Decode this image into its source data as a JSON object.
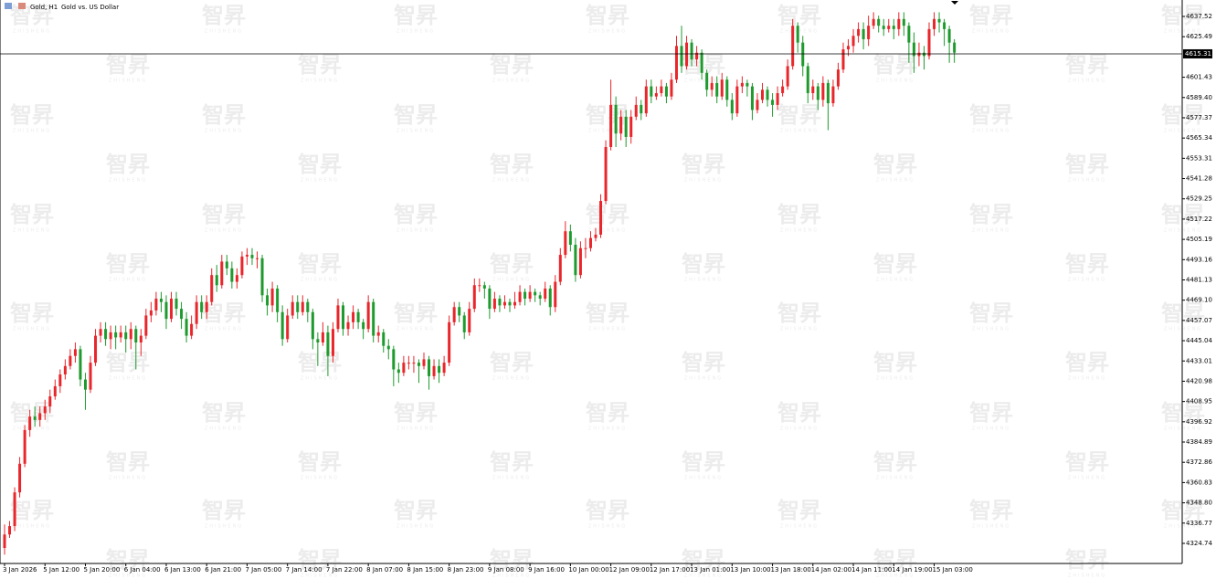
{
  "chart_data": {
    "type": "candlestick",
    "title": "Gold, H1",
    "subtitle": "Gold vs. US Dollar",
    "watermark": {
      "logo": "智昇",
      "text": "ZHISHENG"
    },
    "up_color": "#e8262b",
    "down_color": "#1f9a2e",
    "current_price": 4615.31,
    "ylim": [
      4312.8,
      4647.28
    ],
    "yticks": [
      4324.74,
      4336.77,
      {
        "value": 4348.8,
        "label": "4348.80"
      },
      4360.83,
      4372.86,
      4384.89,
      4396.92,
      4408.95,
      4420.98,
      4433.01,
      4445.04,
      4457.07,
      {
        "value": 4469.1,
        "label": "4469.10"
      },
      4481.13,
      4493.16,
      4505.19,
      4517.22,
      4529.25,
      4541.28,
      4553.31,
      4565.34,
      4577.37,
      {
        "value": 4589.4,
        "label": "4589.40"
      },
      4601.43,
      4625.49,
      4637.52
    ],
    "categories": [
      "3 Jan 2026",
      null,
      null,
      null,
      null,
      null,
      null,
      null,
      "5 Jan 12:00",
      null,
      null,
      null,
      null,
      null,
      null,
      null,
      "5 Jan 20:00",
      null,
      null,
      null,
      null,
      null,
      null,
      null,
      "6 Jan 04:00",
      null,
      null,
      null,
      null,
      null,
      null,
      null,
      "6 Jan 13:00",
      null,
      null,
      null,
      null,
      null,
      null,
      null,
      "6 Jan 21:00",
      null,
      null,
      null,
      null,
      null,
      null,
      null,
      "7 Jan 05:00",
      null,
      null,
      null,
      null,
      null,
      null,
      null,
      "7 Jan 14:00",
      null,
      null,
      null,
      null,
      null,
      null,
      null,
      "7 Jan 22:00",
      null,
      null,
      null,
      null,
      null,
      null,
      null,
      "8 Jan 07:00",
      null,
      null,
      null,
      null,
      null,
      null,
      null,
      "8 Jan 15:00",
      null,
      null,
      null,
      null,
      null,
      null,
      null,
      "8 Jan 23:00",
      null,
      null,
      null,
      null,
      null,
      null,
      null,
      "9 Jan 08:00",
      null,
      null,
      null,
      null,
      null,
      null,
      null,
      "9 Jan 16:00",
      null,
      null,
      null,
      null,
      null,
      null,
      null,
      "10 Jan 00:00",
      null,
      null,
      null,
      null,
      null,
      null,
      null,
      "12 Jan 09:00",
      null,
      null,
      null,
      null,
      null,
      null,
      null,
      "12 Jan 17:00",
      null,
      null,
      null,
      null,
      null,
      null,
      null,
      "13 Jan 01:00",
      null,
      null,
      null,
      null,
      null,
      null,
      null,
      "13 Jan 10:00",
      null,
      null,
      null,
      null,
      null,
      null,
      null,
      "13 Jan 18:00",
      null,
      null,
      null,
      null,
      null,
      null,
      null,
      "14 Jan 02:00",
      null,
      null,
      null,
      null,
      null,
      null,
      null,
      "14 Jan 11:00",
      null,
      null,
      null,
      null,
      null,
      null,
      null,
      "14 Jan 19:00",
      null,
      null,
      null,
      null,
      null,
      null,
      null,
      "15 Jan 03:00",
      null,
      null,
      null,
      null
    ],
    "ohlc": [
      [
        4322,
        4336,
        4318,
        4330
      ],
      [
        4330,
        4338,
        4328,
        4335
      ],
      [
        4335,
        4358,
        4332,
        4355
      ],
      [
        4355,
        4376,
        4352,
        4372
      ],
      [
        4372,
        4395,
        4370,
        4392
      ],
      [
        4392,
        4404,
        4388,
        4400
      ],
      [
        4400,
        4406,
        4394,
        4398
      ],
      [
        4398,
        4406,
        4394,
        4402
      ],
      [
        4402,
        4410,
        4398,
        4406
      ],
      [
        4406,
        4416,
        4402,
        4412
      ],
      [
        4412,
        4422,
        4410,
        4418
      ],
      [
        4418,
        4428,
        4414,
        4425
      ],
      [
        4425,
        4434,
        4422,
        4430
      ],
      [
        4430,
        4440,
        4428,
        4436
      ],
      [
        4436,
        4444,
        4432,
        4440
      ],
      [
        4440,
        4442,
        4418,
        4422
      ],
      [
        4422,
        4426,
        4404,
        4416
      ],
      [
        4416,
        4436,
        4414,
        4432
      ],
      [
        4432,
        4452,
        4430,
        4448
      ],
      [
        4448,
        4456,
        4444,
        4452
      ],
      [
        4452,
        4456,
        4442,
        4446
      ],
      [
        4446,
        4454,
        4440,
        4450
      ],
      [
        4450,
        4454,
        4440,
        4447
      ],
      [
        4447,
        4454,
        4444,
        4450
      ],
      [
        4450,
        4454,
        4438,
        4446
      ],
      [
        4446,
        4456,
        4440,
        4452
      ],
      [
        4452,
        4454,
        4428,
        4444
      ],
      [
        4444,
        4452,
        4436,
        4448
      ],
      [
        4448,
        4464,
        4446,
        4460
      ],
      [
        4460,
        4468,
        4456,
        4463
      ],
      [
        4463,
        4474,
        4460,
        4470
      ],
      [
        4470,
        4474,
        4462,
        4468
      ],
      [
        4468,
        4472,
        4452,
        4458
      ],
      [
        4458,
        4474,
        4456,
        4470
      ],
      [
        4470,
        4474,
        4460,
        4464
      ],
      [
        4464,
        4468,
        4452,
        4458
      ],
      [
        4458,
        4462,
        4444,
        4448
      ],
      [
        4448,
        4460,
        4446,
        4455
      ],
      [
        4455,
        4472,
        4452,
        4468
      ],
      [
        4468,
        4472,
        4458,
        4462
      ],
      [
        4462,
        4472,
        4458,
        4468
      ],
      [
        4468,
        4488,
        4466,
        4484
      ],
      [
        4484,
        4490,
        4474,
        4478
      ],
      [
        4478,
        4496,
        4476,
        4492
      ],
      [
        4492,
        4496,
        4484,
        4488
      ],
      [
        4488,
        4492,
        4476,
        4480
      ],
      [
        4480,
        4488,
        4476,
        4484
      ],
      [
        4484,
        4498,
        4482,
        4495
      ],
      [
        4495,
        4500,
        4490,
        4496
      ],
      [
        4496,
        4500,
        4490,
        4494
      ],
      [
        4494,
        4498,
        4488,
        4494
      ],
      [
        4494,
        4496,
        4468,
        4472
      ],
      [
        4472,
        4476,
        4460,
        4466
      ],
      [
        4466,
        4480,
        4462,
        4476
      ],
      [
        4476,
        4478,
        4456,
        4462
      ],
      [
        4462,
        4466,
        4442,
        4446
      ],
      [
        4446,
        4464,
        4444,
        4460
      ],
      [
        4460,
        4472,
        4458,
        4468
      ],
      [
        4468,
        4472,
        4458,
        4462
      ],
      [
        4462,
        4472,
        4460,
        4468
      ],
      [
        4468,
        4470,
        4456,
        4462
      ],
      [
        4462,
        4464,
        4440,
        4446
      ],
      [
        4446,
        4450,
        4430,
        4444
      ],
      [
        4444,
        4456,
        4442,
        4450
      ],
      [
        4450,
        4454,
        4424,
        4436
      ],
      [
        4436,
        4456,
        4432,
        4452
      ],
      [
        4452,
        4470,
        4450,
        4466
      ],
      [
        4466,
        4468,
        4448,
        4452
      ],
      [
        4452,
        4460,
        4448,
        4456
      ],
      [
        4456,
        4466,
        4452,
        4462
      ],
      [
        4462,
        4464,
        4452,
        4456
      ],
      [
        4456,
        4458,
        4446,
        4452
      ],
      [
        4452,
        4472,
        4450,
        4468
      ],
      [
        4468,
        4470,
        4444,
        4448
      ],
      [
        4448,
        4454,
        4444,
        4450
      ],
      [
        4450,
        4452,
        4438,
        4442
      ],
      [
        4442,
        4446,
        4434,
        4440
      ],
      [
        4440,
        4442,
        4418,
        4428
      ],
      [
        4428,
        4432,
        4420,
        4426
      ],
      [
        4426,
        4436,
        4424,
        4432
      ],
      [
        4432,
        4436,
        4428,
        4432
      ],
      [
        4432,
        4436,
        4426,
        4432
      ],
      [
        4432,
        4434,
        4420,
        4430
      ],
      [
        4430,
        4438,
        4428,
        4434
      ],
      [
        4434,
        4436,
        4416,
        4424
      ],
      [
        4424,
        4434,
        4422,
        4430
      ],
      [
        4430,
        4434,
        4420,
        4426
      ],
      [
        4426,
        4436,
        4424,
        4432
      ],
      [
        4432,
        4460,
        4430,
        4456
      ],
      [
        4456,
        4468,
        4454,
        4465
      ],
      [
        4465,
        4468,
        4456,
        4460
      ],
      [
        4460,
        4462,
        4446,
        4450
      ],
      [
        4450,
        4468,
        4448,
        4464
      ],
      [
        4464,
        4482,
        4462,
        4478
      ],
      [
        4478,
        4482,
        4474,
        4478
      ],
      [
        4478,
        4480,
        4470,
        4476
      ],
      [
        4476,
        4478,
        4458,
        4464
      ],
      [
        4464,
        4474,
        4462,
        4470
      ],
      [
        4470,
        4472,
        4462,
        4466
      ],
      [
        4466,
        4472,
        4464,
        4468
      ],
      [
        4468,
        4470,
        4462,
        4466
      ],
      [
        4466,
        4474,
        4464,
        4468
      ],
      [
        4468,
        4478,
        4466,
        4474
      ],
      [
        4474,
        4476,
        4466,
        4470
      ],
      [
        4470,
        4478,
        4468,
        4474
      ],
      [
        4474,
        4476,
        4468,
        4472
      ],
      [
        4472,
        4474,
        4466,
        4470
      ],
      [
        4470,
        4480,
        4468,
        4476
      ],
      [
        4476,
        4478,
        4460,
        4465
      ],
      [
        4465,
        4484,
        4462,
        4480
      ],
      [
        4480,
        4500,
        4478,
        4496
      ],
      [
        4496,
        4516,
        4494,
        4510
      ],
      [
        4510,
        4514,
        4498,
        4502
      ],
      [
        4502,
        4506,
        4480,
        4484
      ],
      [
        4484,
        4504,
        4482,
        4500
      ],
      [
        4500,
        4506,
        4494,
        4500
      ],
      [
        4500,
        4510,
        4498,
        4506
      ],
      [
        4506,
        4512,
        4504,
        4508
      ],
      [
        4508,
        4532,
        4506,
        4528
      ],
      [
        4528,
        4564,
        4526,
        4560
      ],
      [
        4560,
        4600,
        4558,
        4585
      ],
      [
        4585,
        4590,
        4560,
        4568
      ],
      [
        4568,
        4582,
        4564,
        4578
      ],
      [
        4578,
        4582,
        4560,
        4566
      ],
      [
        4566,
        4582,
        4562,
        4578
      ],
      [
        4578,
        4590,
        4576,
        4585
      ],
      [
        4585,
        4588,
        4576,
        4580
      ],
      [
        4580,
        4600,
        4578,
        4596
      ],
      [
        4596,
        4600,
        4586,
        4590
      ],
      [
        4590,
        4596,
        4588,
        4592
      ],
      [
        4592,
        4600,
        4590,
        4596
      ],
      [
        4596,
        4598,
        4586,
        4590
      ],
      [
        4590,
        4604,
        4588,
        4600
      ],
      [
        4600,
        4626,
        4598,
        4620
      ],
      [
        4620,
        4632,
        4604,
        4608
      ],
      [
        4608,
        4626,
        4606,
        4622
      ],
      [
        4622,
        4624,
        4608,
        4612
      ],
      [
        4612,
        4620,
        4608,
        4616
      ],
      [
        4616,
        4618,
        4600,
        4604
      ],
      [
        4604,
        4606,
        4590,
        4594
      ],
      [
        4594,
        4602,
        4590,
        4598
      ],
      [
        4598,
        4602,
        4586,
        4590
      ],
      [
        4590,
        4604,
        4588,
        4600
      ],
      [
        4600,
        4602,
        4584,
        4588
      ],
      [
        4588,
        4592,
        4576,
        4580
      ],
      [
        4580,
        4600,
        4578,
        4596
      ],
      [
        4596,
        4602,
        4592,
        4598
      ],
      [
        4598,
        4600,
        4590,
        4596
      ],
      [
        4596,
        4598,
        4576,
        4582
      ],
      [
        4582,
        4592,
        4580,
        4588
      ],
      [
        4588,
        4598,
        4586,
        4594
      ],
      [
        4594,
        4596,
        4584,
        4588
      ],
      [
        4588,
        4592,
        4578,
        4585
      ],
      [
        4585,
        4596,
        4582,
        4592
      ],
      [
        4592,
        4600,
        4590,
        4596
      ],
      [
        4596,
        4612,
        4594,
        4608
      ],
      [
        4608,
        4636,
        4606,
        4632
      ],
      [
        4632,
        4634,
        4616,
        4622
      ],
      [
        4622,
        4626,
        4602,
        4608
      ],
      [
        4608,
        4610,
        4586,
        4592
      ],
      [
        4592,
        4600,
        4588,
        4596
      ],
      [
        4596,
        4598,
        4582,
        4588
      ],
      [
        4588,
        4602,
        4584,
        4598
      ],
      [
        4598,
        4600,
        4570,
        4586
      ],
      [
        4586,
        4600,
        4584,
        4596
      ],
      [
        4596,
        4610,
        4594,
        4606
      ],
      [
        4606,
        4622,
        4604,
        4618
      ],
      [
        4618,
        4624,
        4614,
        4620
      ],
      [
        4620,
        4630,
        4616,
        4626
      ],
      [
        4626,
        4634,
        4622,
        4630
      ],
      [
        4630,
        4634,
        4618,
        4624
      ],
      [
        4624,
        4638,
        4620,
        4632
      ],
      [
        4632,
        4640,
        4630,
        4636
      ],
      [
        4636,
        4638,
        4628,
        4632
      ],
      [
        4632,
        4636,
        4626,
        4630
      ],
      [
        4630,
        4636,
        4628,
        4632
      ],
      [
        4632,
        4636,
        4624,
        4630
      ],
      [
        4630,
        4640,
        4626,
        4636
      ],
      [
        4636,
        4640,
        4626,
        4632
      ],
      [
        4632,
        4634,
        4610,
        4622
      ],
      [
        4622,
        4628,
        4604,
        4614
      ],
      [
        4614,
        4622,
        4608,
        4616
      ],
      [
        4616,
        4620,
        4606,
        4614
      ],
      [
        4614,
        4634,
        4612,
        4630
      ],
      [
        4630,
        4640,
        4626,
        4636
      ],
      [
        4636,
        4640,
        4628,
        4634
      ],
      [
        4634,
        4636,
        4620,
        4630
      ],
      [
        4630,
        4632,
        4610,
        4622
      ],
      [
        4622,
        4624,
        4610,
        4616
      ]
    ]
  }
}
